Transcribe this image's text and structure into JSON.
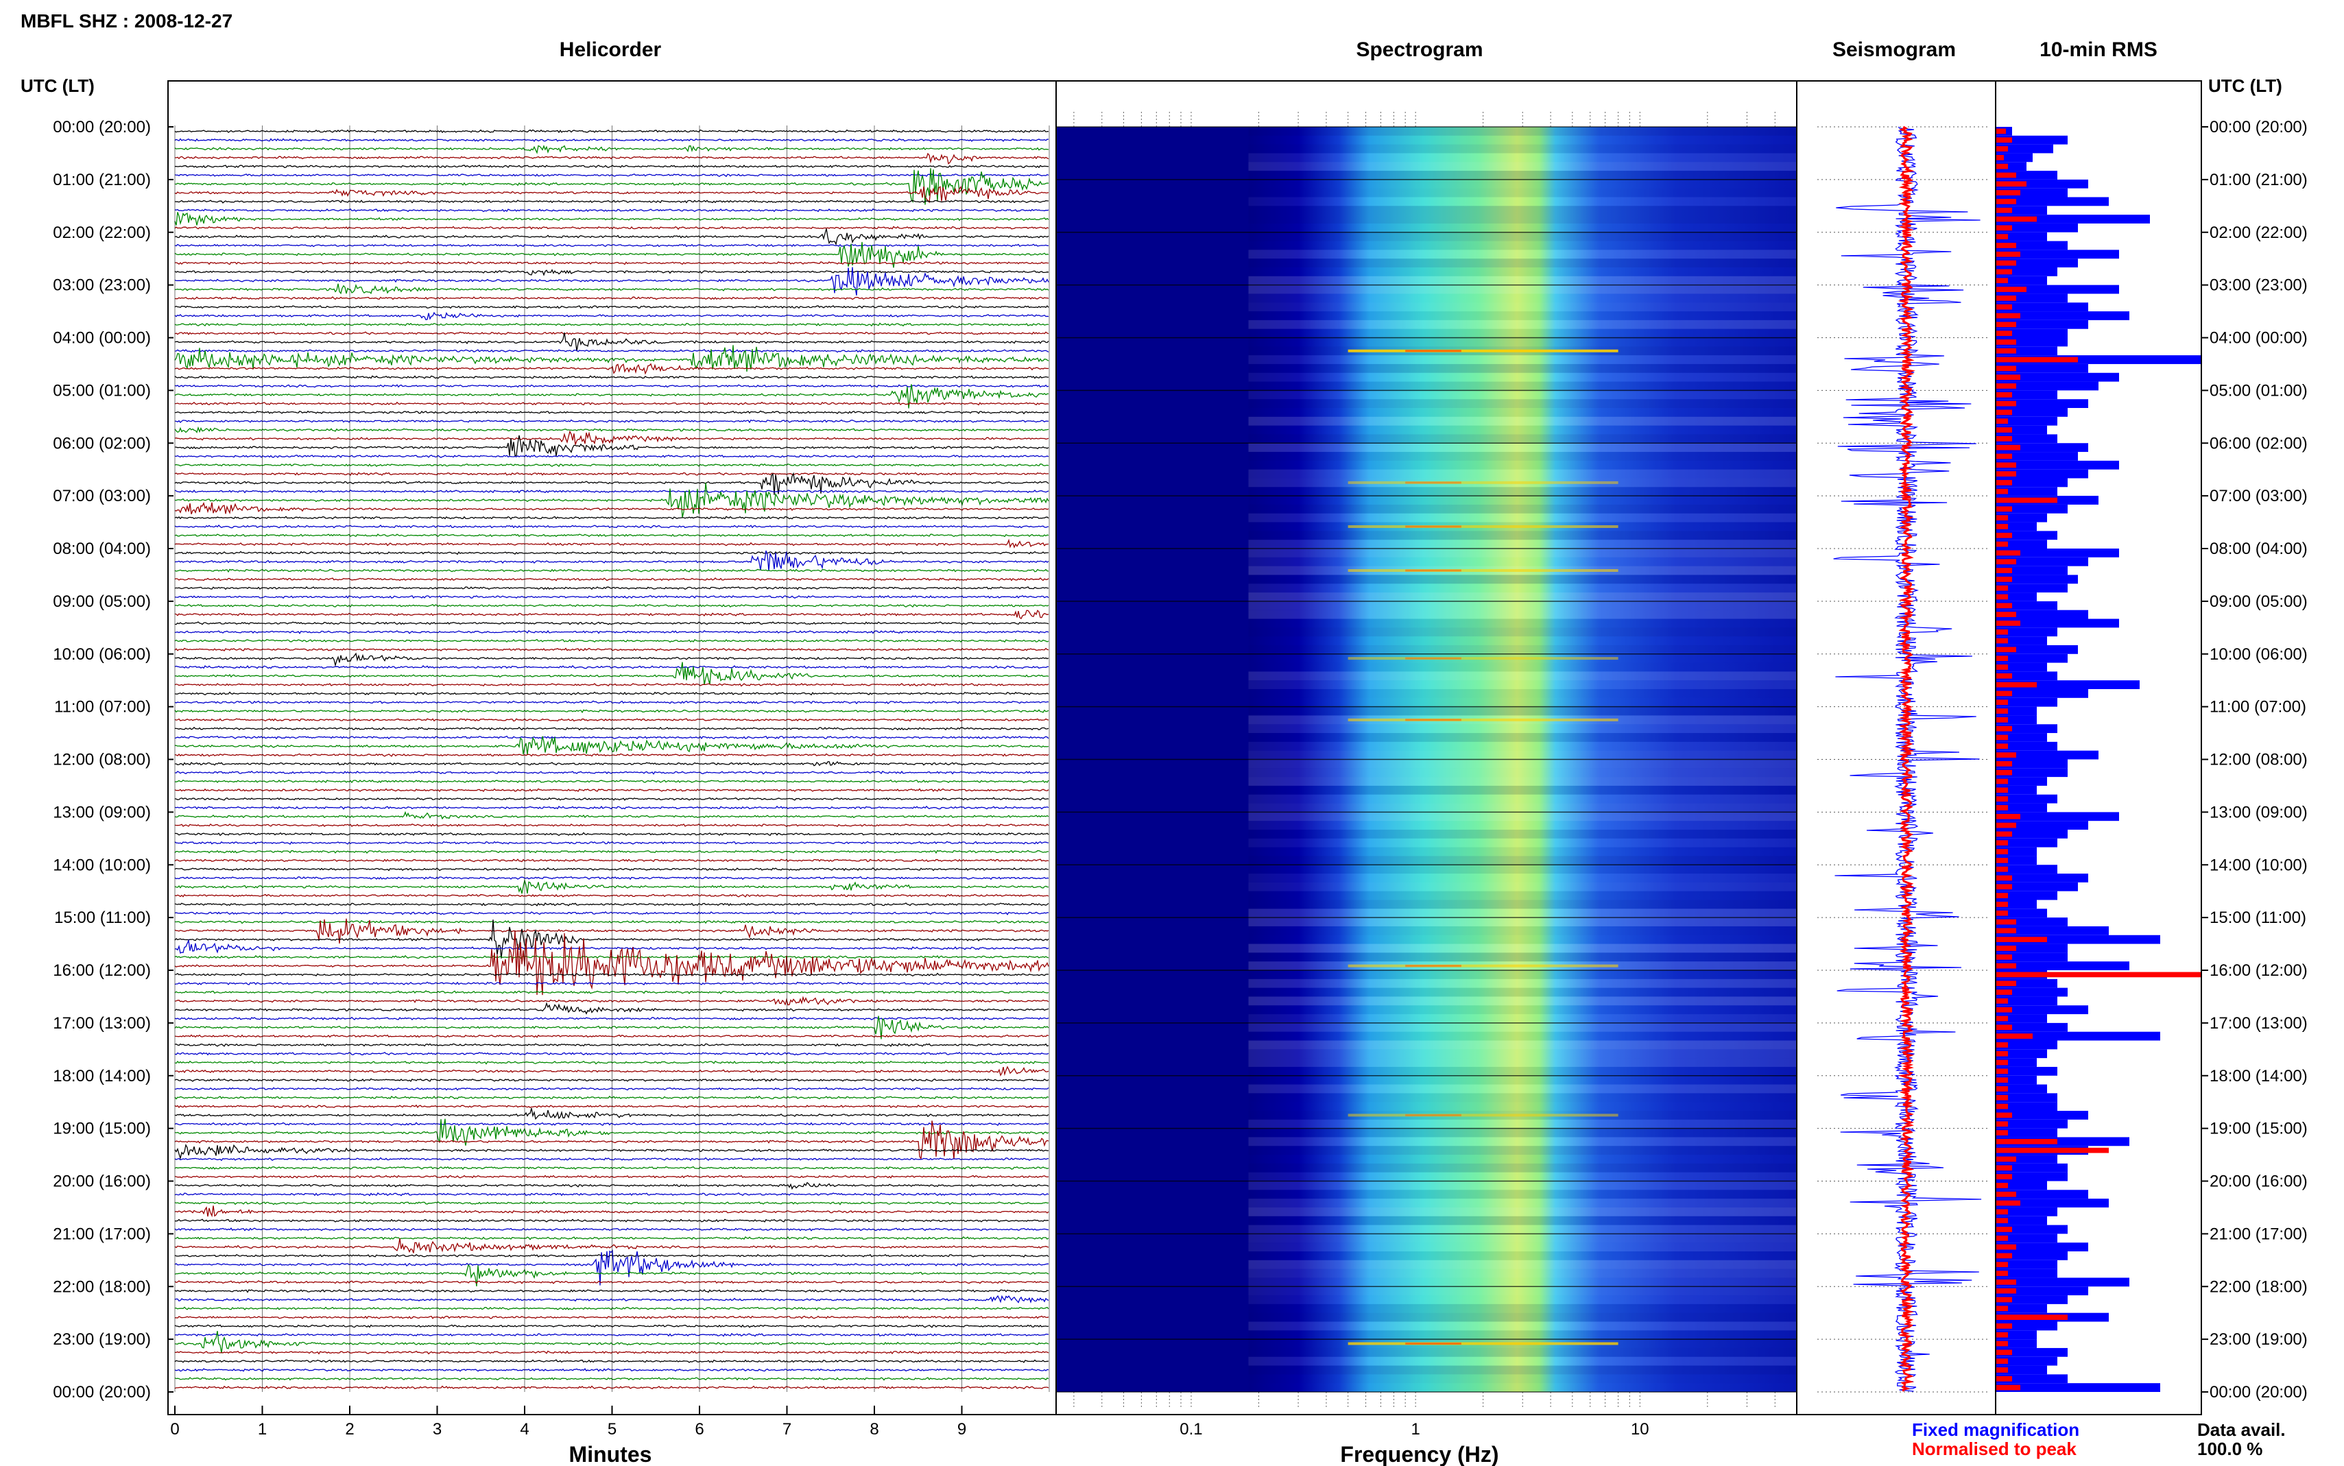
{
  "header": {
    "title": "MBFL SHZ : 2008-12-27",
    "time_axis_label_left": "UTC (LT)",
    "time_axis_label_right": "UTC (LT)"
  },
  "panels": {
    "helicorder": "Helicorder",
    "spectrogram": "Spectrogram",
    "seismogram": "Seismogram",
    "rms": "10-min RMS"
  },
  "time_labels": [
    "00:00 (20:00)",
    "01:00 (21:00)",
    "02:00 (22:00)",
    "03:00 (23:00)",
    "04:00 (00:00)",
    "05:00 (01:00)",
    "06:00 (02:00)",
    "07:00 (03:00)",
    "08:00 (04:00)",
    "09:00 (05:00)",
    "10:00 (06:00)",
    "11:00 (07:00)",
    "12:00 (08:00)",
    "13:00 (09:00)",
    "14:00 (10:00)",
    "15:00 (11:00)",
    "16:00 (12:00)",
    "17:00 (13:00)",
    "18:00 (14:00)",
    "19:00 (15:00)",
    "20:00 (16:00)",
    "21:00 (17:00)",
    "22:00 (18:00)",
    "23:00 (19:00)",
    "00:00 (20:00)"
  ],
  "legend": {
    "fixed": "Fixed magnification",
    "normalised": "Normalised to peak",
    "fixed_color": "#0000ff",
    "normalised_color": "#ff0000"
  },
  "availability": {
    "label": "Data avail.",
    "value": "100.0 %"
  },
  "colors": {
    "trace_cycle": [
      "#000000",
      "#0000cc",
      "#008800",
      "#990000"
    ],
    "spectrogram_low": "#00008b",
    "spectrogram_high": "#ffff00",
    "rms_fixed": "#0000ff",
    "rms_normalised": "#ff0000"
  },
  "chart_data": [
    {
      "type": "line",
      "name": "helicorder",
      "title": "Helicorder",
      "xlabel": "Minutes",
      "x_ticks": [
        "0",
        "1",
        "2",
        "3",
        "4",
        "5",
        "6",
        "7",
        "8",
        "9"
      ],
      "xlim": [
        0,
        10
      ],
      "rows": 144,
      "row_minutes": 10,
      "events": [
        {
          "row": 2,
          "minute": 4.0,
          "duration": 1.0,
          "amp": 1.3
        },
        {
          "row": 2,
          "minute": 5.8,
          "duration": 0.8,
          "amp": 0.8
        },
        {
          "row": 3,
          "minute": 8.6,
          "duration": 0.6,
          "amp": 3.0
        },
        {
          "row": 6,
          "minute": 8.4,
          "duration": 1.5,
          "amp": 8.0
        },
        {
          "row": 7,
          "minute": 1.8,
          "duration": 1.2,
          "amp": 1.0
        },
        {
          "row": 7,
          "minute": 8.5,
          "duration": 1.3,
          "amp": 3.5
        },
        {
          "row": 10,
          "minute": 0.0,
          "duration": 0.8,
          "amp": 3.0
        },
        {
          "row": 12,
          "minute": 7.4,
          "duration": 1.2,
          "amp": 2.0
        },
        {
          "row": 14,
          "minute": 7.6,
          "duration": 1.2,
          "amp": 7.0
        },
        {
          "row": 16,
          "minute": 4.0,
          "duration": 0.6,
          "amp": 1.0
        },
        {
          "row": 17,
          "minute": 7.5,
          "duration": 2.5,
          "amp": 3.5
        },
        {
          "row": 18,
          "minute": 1.8,
          "duration": 1.3,
          "amp": 1.5
        },
        {
          "row": 21,
          "minute": 2.8,
          "duration": 0.8,
          "amp": 1.2
        },
        {
          "row": 24,
          "minute": 4.4,
          "duration": 1.2,
          "amp": 2.0
        },
        {
          "row": 26,
          "minute": 0.0,
          "duration": 5.5,
          "amp": 2.5
        },
        {
          "row": 26,
          "minute": 5.9,
          "duration": 4.1,
          "amp": 3.5
        },
        {
          "row": 27,
          "minute": 5.0,
          "duration": 1.0,
          "amp": 2.5
        },
        {
          "row": 30,
          "minute": 8.2,
          "duration": 1.8,
          "amp": 3.0
        },
        {
          "row": 34,
          "minute": 0.0,
          "duration": 0.6,
          "amp": 1.0
        },
        {
          "row": 35,
          "minute": 4.4,
          "duration": 1.4,
          "amp": 2.0
        },
        {
          "row": 36,
          "minute": 3.8,
          "duration": 1.5,
          "amp": 3.5
        },
        {
          "row": 40,
          "minute": 6.7,
          "duration": 1.8,
          "amp": 4.0
        },
        {
          "row": 42,
          "minute": 5.6,
          "duration": 4.4,
          "amp": 4.0
        },
        {
          "row": 43,
          "minute": 0.0,
          "duration": 1.5,
          "amp": 2.0
        },
        {
          "row": 47,
          "minute": 9.5,
          "duration": 0.5,
          "amp": 1.5
        },
        {
          "row": 49,
          "minute": 6.6,
          "duration": 1.6,
          "amp": 4.0
        },
        {
          "row": 55,
          "minute": 9.6,
          "duration": 0.4,
          "amp": 3.0
        },
        {
          "row": 60,
          "minute": 1.8,
          "duration": 1.0,
          "amp": 1.5
        },
        {
          "row": 62,
          "minute": 5.7,
          "duration": 1.6,
          "amp": 3.5
        },
        {
          "row": 70,
          "minute": 3.9,
          "duration": 4.3,
          "amp": 2.5
        },
        {
          "row": 72,
          "minute": 7.3,
          "duration": 0.6,
          "amp": 1.0
        },
        {
          "row": 78,
          "minute": 2.6,
          "duration": 0.8,
          "amp": 1.0
        },
        {
          "row": 86,
          "minute": 3.9,
          "duration": 1.0,
          "amp": 2.0
        },
        {
          "row": 86,
          "minute": 7.5,
          "duration": 1.0,
          "amp": 1.2
        },
        {
          "row": 91,
          "minute": 1.6,
          "duration": 1.7,
          "amp": 4.0
        },
        {
          "row": 91,
          "minute": 6.5,
          "duration": 1.0,
          "amp": 2.0
        },
        {
          "row": 92,
          "minute": 3.6,
          "duration": 1.0,
          "amp": 7.0
        },
        {
          "row": 93,
          "minute": 0.0,
          "duration": 1.2,
          "amp": 2.0
        },
        {
          "row": 95,
          "minute": 3.6,
          "duration": 6.4,
          "amp": 9.0
        },
        {
          "row": 99,
          "minute": 6.8,
          "duration": 1.0,
          "amp": 2.0
        },
        {
          "row": 100,
          "minute": 4.2,
          "duration": 1.3,
          "amp": 1.5
        },
        {
          "row": 102,
          "minute": 8.0,
          "duration": 0.8,
          "amp": 3.5
        },
        {
          "row": 107,
          "minute": 9.4,
          "duration": 0.6,
          "amp": 1.5
        },
        {
          "row": 112,
          "minute": 4.0,
          "duration": 1.4,
          "amp": 1.5
        },
        {
          "row": 114,
          "minute": 3.0,
          "duration": 2.0,
          "amp": 3.5
        },
        {
          "row": 115,
          "minute": 8.5,
          "duration": 1.5,
          "amp": 7.0
        },
        {
          "row": 116,
          "minute": 0.0,
          "duration": 2.0,
          "amp": 2.0
        },
        {
          "row": 120,
          "minute": 7.0,
          "duration": 0.6,
          "amp": 1.0
        },
        {
          "row": 123,
          "minute": 0.3,
          "duration": 0.6,
          "amp": 2.0
        },
        {
          "row": 127,
          "minute": 2.5,
          "duration": 2.8,
          "amp": 1.5
        },
        {
          "row": 129,
          "minute": 4.8,
          "duration": 1.6,
          "amp": 5.0
        },
        {
          "row": 130,
          "minute": 3.3,
          "duration": 1.2,
          "amp": 3.0
        },
        {
          "row": 133,
          "minute": 9.3,
          "duration": 0.7,
          "amp": 1.5
        },
        {
          "row": 138,
          "minute": 0.3,
          "duration": 1.2,
          "amp": 3.0
        }
      ]
    },
    {
      "type": "heatmap",
      "name": "spectrogram",
      "title": "Spectrogram",
      "xlabel": "Frequency (Hz)",
      "x_scale": "log",
      "xlim": [
        0.025,
        50
      ],
      "x_tick_labels": [
        "0.1",
        "1",
        "10"
      ],
      "x_tick_values": [
        0.1,
        1,
        10
      ],
      "rows": 144,
      "energy_band_hz": [
        0.18,
        5
      ],
      "peak_hz": 1.0,
      "bright_lines": [
        {
          "row": 25,
          "strength": 0.9
        },
        {
          "row": 40,
          "strength": 0.5
        },
        {
          "row": 45,
          "strength": 0.6
        },
        {
          "row": 50,
          "strength": 0.6
        },
        {
          "row": 60,
          "strength": 0.5
        },
        {
          "row": 67,
          "strength": 0.6
        },
        {
          "row": 95,
          "strength": 0.6
        },
        {
          "row": 112,
          "strength": 0.5
        },
        {
          "row": 138,
          "strength": 0.8
        }
      ]
    },
    {
      "type": "line",
      "name": "seismogram",
      "title": "Seismogram",
      "rows": 144,
      "series": [
        {
          "name": "Fixed magnification",
          "color": "#0000ff"
        },
        {
          "name": "Normalised to peak",
          "color": "#ff0000"
        }
      ],
      "spike_rows": [
        9,
        10,
        14,
        18,
        19,
        26,
        27,
        31,
        32,
        33,
        36,
        38,
        39,
        42,
        49,
        52,
        57,
        60,
        62,
        67,
        71,
        73,
        80,
        85,
        89,
        93,
        95,
        98,
        103,
        110,
        114,
        118,
        122,
        130,
        131,
        139
      ]
    },
    {
      "type": "bar",
      "name": "rms",
      "title": "10-min RMS",
      "orientation": "horizontal",
      "rows": 144,
      "xlim": [
        0,
        1
      ],
      "series": [
        {
          "name": "Fixed magnification",
          "color": "#0000ff",
          "values": [
            0.08,
            0.35,
            0.28,
            0.18,
            0.15,
            0.3,
            0.45,
            0.35,
            0.55,
            0.25,
            0.75,
            0.4,
            0.25,
            0.35,
            0.6,
            0.4,
            0.3,
            0.25,
            0.6,
            0.35,
            0.45,
            0.65,
            0.45,
            0.35,
            0.35,
            0.3,
            1.0,
            0.45,
            0.6,
            0.5,
            0.3,
            0.45,
            0.35,
            0.3,
            0.25,
            0.3,
            0.45,
            0.4,
            0.6,
            0.45,
            0.35,
            0.3,
            0.5,
            0.35,
            0.25,
            0.2,
            0.3,
            0.25,
            0.6,
            0.45,
            0.35,
            0.4,
            0.35,
            0.2,
            0.3,
            0.45,
            0.6,
            0.3,
            0.25,
            0.4,
            0.35,
            0.25,
            0.3,
            0.7,
            0.45,
            0.3,
            0.2,
            0.2,
            0.3,
            0.25,
            0.3,
            0.5,
            0.35,
            0.35,
            0.25,
            0.2,
            0.3,
            0.25,
            0.6,
            0.45,
            0.35,
            0.3,
            0.2,
            0.2,
            0.3,
            0.45,
            0.4,
            0.3,
            0.2,
            0.25,
            0.35,
            0.55,
            0.8,
            0.35,
            0.35,
            0.65,
            0.25,
            0.3,
            0.35,
            0.3,
            0.45,
            0.25,
            0.35,
            0.8,
            0.3,
            0.25,
            0.2,
            0.3,
            0.2,
            0.25,
            0.3,
            0.3,
            0.45,
            0.35,
            0.3,
            0.65,
            0.45,
            0.3,
            0.35,
            0.35,
            0.25,
            0.45,
            0.55,
            0.3,
            0.25,
            0.35,
            0.3,
            0.45,
            0.35,
            0.3,
            0.3,
            0.65,
            0.45,
            0.35,
            0.25,
            0.55,
            0.3,
            0.2,
            0.2,
            0.35,
            0.3,
            0.25,
            0.35,
            0.8
          ]
        },
        {
          "name": "Normalised to peak",
          "color": "#ff0000",
          "values": [
            0.05,
            0.08,
            0.06,
            0.04,
            0.06,
            0.1,
            0.15,
            0.12,
            0.1,
            0.08,
            0.2,
            0.08,
            0.06,
            0.1,
            0.12,
            0.1,
            0.08,
            0.06,
            0.15,
            0.1,
            0.08,
            0.12,
            0.1,
            0.08,
            0.1,
            0.1,
            0.4,
            0.1,
            0.12,
            0.1,
            0.08,
            0.1,
            0.08,
            0.06,
            0.08,
            0.08,
            0.12,
            0.08,
            0.1,
            0.1,
            0.08,
            0.06,
            0.3,
            0.08,
            0.06,
            0.06,
            0.08,
            0.06,
            0.12,
            0.1,
            0.08,
            0.08,
            0.06,
            0.06,
            0.08,
            0.1,
            0.12,
            0.06,
            0.06,
            0.1,
            0.06,
            0.06,
            0.08,
            0.2,
            0.08,
            0.06,
            0.06,
            0.06,
            0.08,
            0.06,
            0.06,
            0.1,
            0.08,
            0.08,
            0.06,
            0.06,
            0.06,
            0.06,
            0.12,
            0.1,
            0.08,
            0.06,
            0.06,
            0.06,
            0.06,
            0.08,
            0.08,
            0.06,
            0.06,
            0.06,
            0.1,
            0.1,
            0.25,
            0.1,
            0.08,
            0.1,
            1.0,
            0.1,
            0.08,
            0.06,
            0.08,
            0.06,
            0.08,
            0.18,
            0.06,
            0.06,
            0.06,
            0.06,
            0.06,
            0.06,
            0.06,
            0.06,
            0.08,
            0.06,
            0.06,
            0.3,
            0.55,
            0.1,
            0.08,
            0.08,
            0.06,
            0.1,
            0.12,
            0.06,
            0.06,
            0.08,
            0.06,
            0.1,
            0.08,
            0.06,
            0.06,
            0.1,
            0.1,
            0.08,
            0.06,
            0.35,
            0.08,
            0.06,
            0.06,
            0.08,
            0.06,
            0.06,
            0.08,
            0.12
          ]
        }
      ]
    }
  ]
}
